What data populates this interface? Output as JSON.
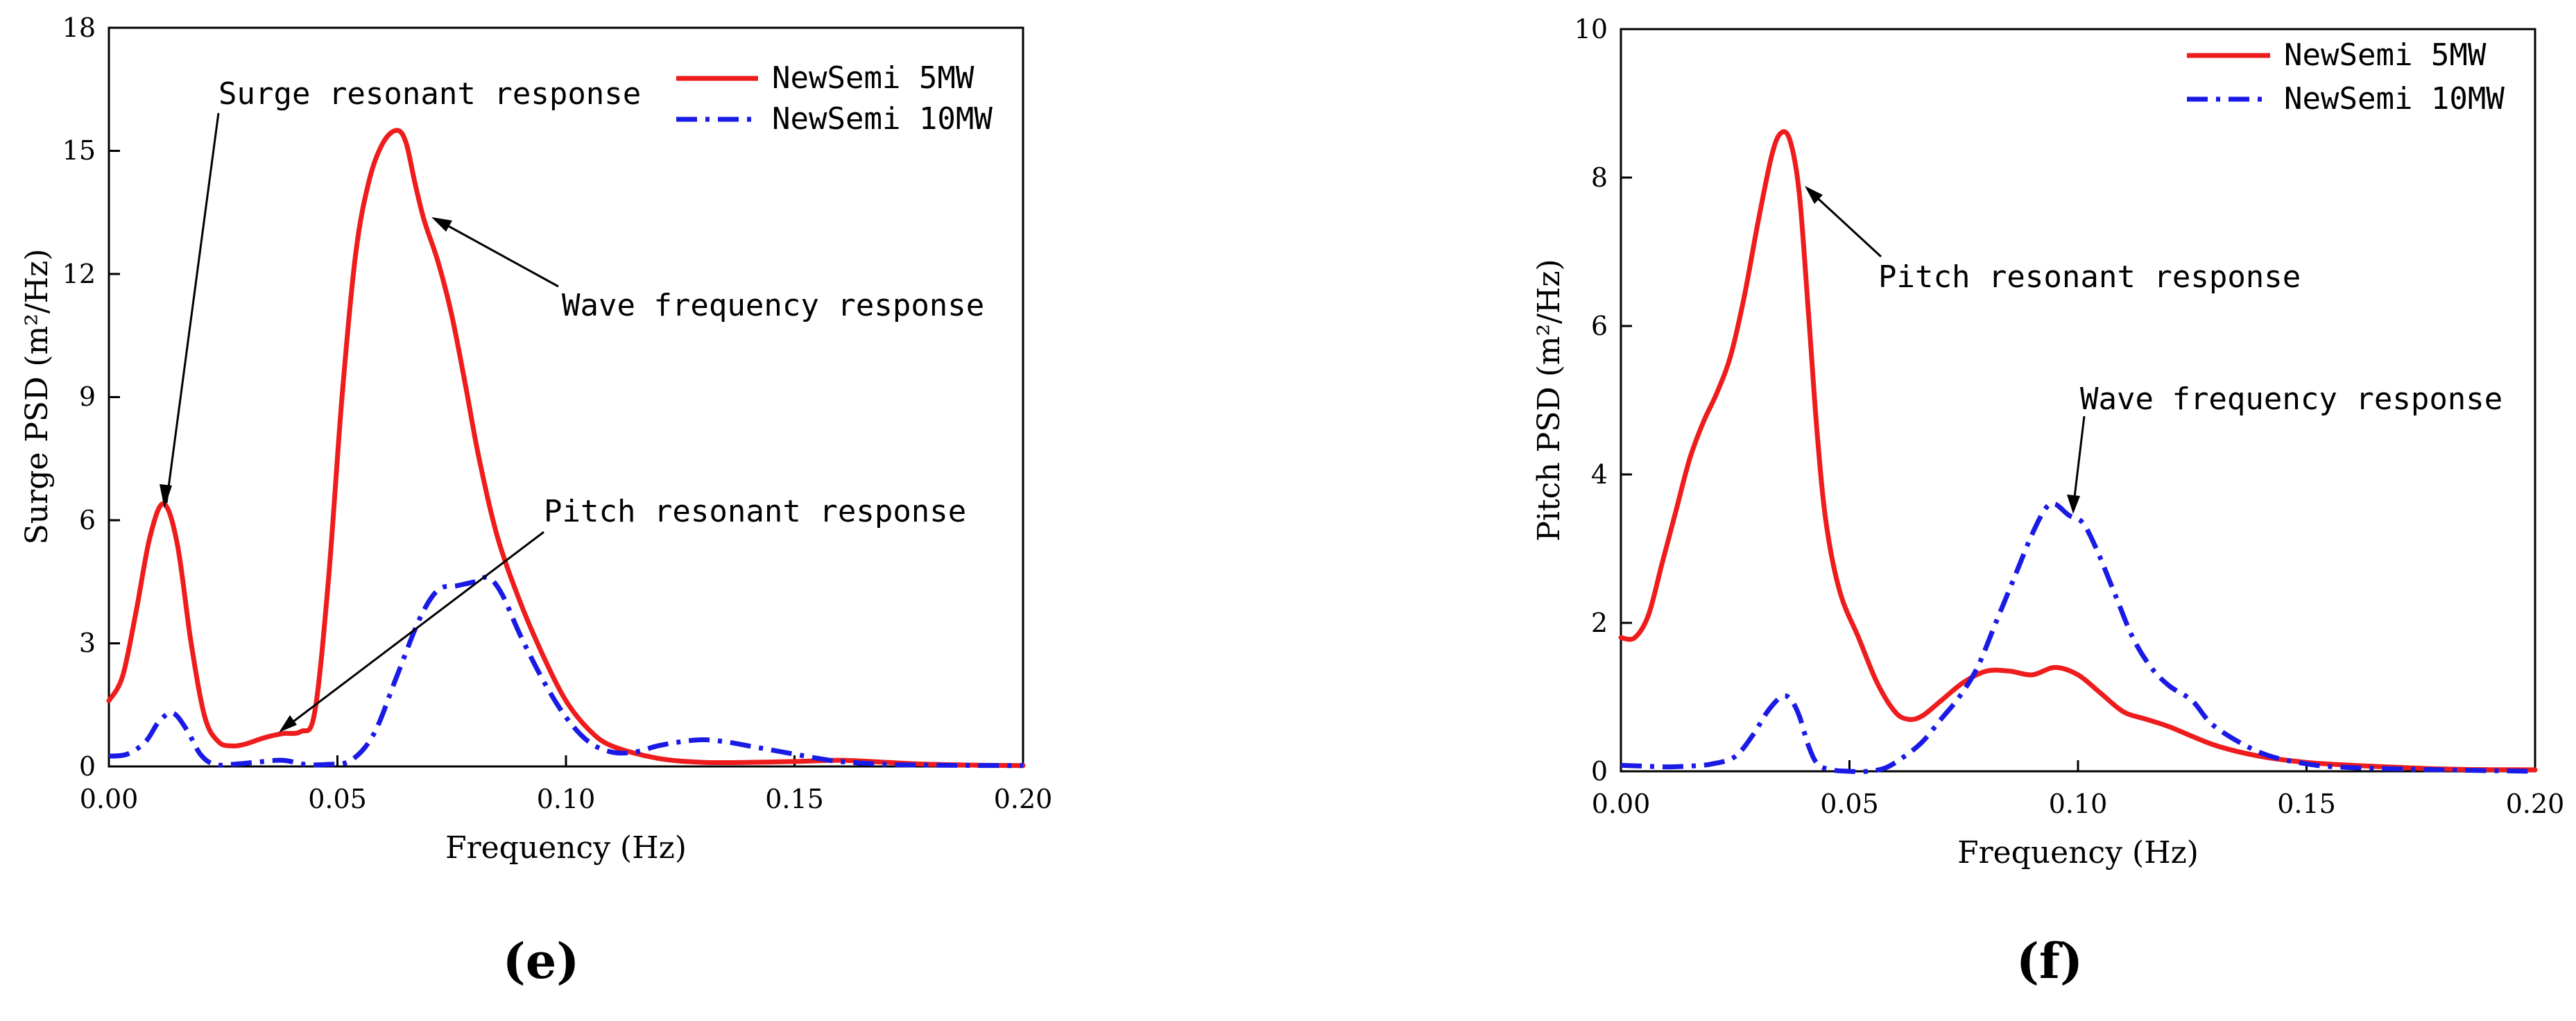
{
  "figure": {
    "colors": {
      "red": "#ee1c1c",
      "blue": "#1a1ae6",
      "axis": "#000000"
    }
  },
  "chart_data": [
    {
      "type": "line",
      "panel_label": "(e)",
      "xlabel": "Frequency (Hz)",
      "ylabel": "Surge PSD (m²/Hz)",
      "xlim": [
        0,
        0.2
      ],
      "ylim": [
        0,
        18
      ],
      "xticks": [
        0,
        0.05,
        0.1,
        0.15,
        0.2
      ],
      "xtick_labels": [
        "0.00",
        "0.05",
        "0.10",
        "0.15",
        "0.20"
      ],
      "yticks": [
        0,
        3,
        6,
        9,
        12,
        15,
        18
      ],
      "ytick_labels": [
        "0",
        "3",
        "6",
        "9",
        "12",
        "15",
        "18"
      ],
      "grid": false,
      "legend_position": "top-right",
      "series": [
        {
          "name": "NewSemi 5MW",
          "color": "#ee1c1c",
          "style": "solid",
          "x": [
            0,
            0.003,
            0.006,
            0.009,
            0.012,
            0.015,
            0.018,
            0.021,
            0.024,
            0.027,
            0.03,
            0.034,
            0.038,
            0.042,
            0.045,
            0.048,
            0.051,
            0.054,
            0.057,
            0.06,
            0.063,
            0.065,
            0.067,
            0.069,
            0.072,
            0.075,
            0.078,
            0.081,
            0.085,
            0.09,
            0.095,
            0.1,
            0.105,
            0.11,
            0.12,
            0.13,
            0.14,
            0.15,
            0.16,
            0.17,
            0.18,
            0.19,
            0.2
          ],
          "values": [
            1.6,
            2.2,
            3.8,
            5.6,
            6.4,
            5.4,
            3.0,
            1.2,
            0.6,
            0.5,
            0.55,
            0.7,
            0.8,
            0.85,
            1.3,
            4.5,
            9.0,
            12.5,
            14.3,
            15.2,
            15.5,
            15.2,
            14.2,
            13.3,
            12.3,
            11.0,
            9.3,
            7.5,
            5.6,
            4.0,
            2.7,
            1.6,
            0.9,
            0.5,
            0.2,
            0.1,
            0.1,
            0.12,
            0.15,
            0.1,
            0.05,
            0.03,
            0.02
          ]
        },
        {
          "name": "NewSemi 10MW",
          "color": "#1a1ae6",
          "style": "dash-dot",
          "x": [
            0,
            0.004,
            0.008,
            0.011,
            0.014,
            0.017,
            0.02,
            0.023,
            0.027,
            0.032,
            0.038,
            0.043,
            0.048,
            0.053,
            0.058,
            0.063,
            0.068,
            0.072,
            0.076,
            0.08,
            0.083,
            0.086,
            0.09,
            0.095,
            0.1,
            0.105,
            0.11,
            0.115,
            0.12,
            0.125,
            0.13,
            0.135,
            0.14,
            0.145,
            0.15,
            0.155,
            0.16,
            0.17,
            0.18,
            0.2
          ],
          "values": [
            0.25,
            0.3,
            0.6,
            1.1,
            1.3,
            0.9,
            0.3,
            0.05,
            0.05,
            0.1,
            0.15,
            0.05,
            0.05,
            0.15,
            0.8,
            2.2,
            3.6,
            4.3,
            4.4,
            4.5,
            4.6,
            4.2,
            3.2,
            2.1,
            1.2,
            0.6,
            0.35,
            0.35,
            0.5,
            0.6,
            0.65,
            0.6,
            0.5,
            0.4,
            0.3,
            0.2,
            0.12,
            0.05,
            0.03,
            0.02
          ]
        }
      ],
      "annotations": [
        {
          "text": "Surge resonant response",
          "x": 0.012,
          "y": 6.4
        },
        {
          "text": "Wave frequency response",
          "x": 0.071,
          "y": 13.4
        },
        {
          "text": "Pitch resonant response",
          "x": 0.037,
          "y": 0.85
        }
      ]
    },
    {
      "type": "line",
      "panel_label": "(f)",
      "xlabel": "Frequency (Hz)",
      "ylabel": "Pitch PSD (m²/Hz)",
      "xlim": [
        0,
        0.2
      ],
      "ylim": [
        0,
        10
      ],
      "xticks": [
        0,
        0.05,
        0.1,
        0.15,
        0.2
      ],
      "xtick_labels": [
        "0.00",
        "0.05",
        "0.10",
        "0.15",
        "0.20"
      ],
      "yticks": [
        0,
        2,
        4,
        6,
        8,
        10
      ],
      "ytick_labels": [
        "0",
        "2",
        "4",
        "6",
        "8",
        "10"
      ],
      "grid": false,
      "legend_position": "top-right",
      "series": [
        {
          "name": "NewSemi 5MW",
          "color": "#ee1c1c",
          "style": "solid",
          "x": [
            0,
            0.003,
            0.006,
            0.009,
            0.012,
            0.015,
            0.018,
            0.021,
            0.024,
            0.027,
            0.03,
            0.033,
            0.035,
            0.037,
            0.039,
            0.041,
            0.043,
            0.045,
            0.048,
            0.052,
            0.056,
            0.06,
            0.063,
            0.066,
            0.07,
            0.075,
            0.08,
            0.085,
            0.09,
            0.095,
            0.1,
            0.105,
            0.11,
            0.115,
            0.12,
            0.13,
            0.14,
            0.15,
            0.16,
            0.18,
            0.2
          ],
          "values": [
            1.8,
            1.8,
            2.1,
            2.8,
            3.5,
            4.2,
            4.7,
            5.1,
            5.6,
            6.4,
            7.4,
            8.3,
            8.6,
            8.5,
            7.8,
            6.2,
            4.5,
            3.3,
            2.4,
            1.8,
            1.2,
            0.8,
            0.7,
            0.75,
            0.95,
            1.2,
            1.35,
            1.35,
            1.3,
            1.4,
            1.3,
            1.05,
            0.8,
            0.7,
            0.6,
            0.35,
            0.2,
            0.12,
            0.08,
            0.03,
            0.02
          ]
        },
        {
          "name": "NewSemi 10MW",
          "color": "#1a1ae6",
          "style": "dash-dot",
          "x": [
            0,
            0.005,
            0.01,
            0.015,
            0.02,
            0.025,
            0.029,
            0.032,
            0.035,
            0.037,
            0.039,
            0.041,
            0.043,
            0.046,
            0.05,
            0.054,
            0.058,
            0.062,
            0.066,
            0.07,
            0.074,
            0.078,
            0.082,
            0.086,
            0.09,
            0.093,
            0.095,
            0.098,
            0.101,
            0.104,
            0.108,
            0.112,
            0.116,
            0.12,
            0.125,
            0.13,
            0.14,
            0.15,
            0.16,
            0.18,
            0.2
          ],
          "values": [
            0.08,
            0.07,
            0.06,
            0.07,
            0.1,
            0.2,
            0.5,
            0.8,
            1.0,
            0.98,
            0.75,
            0.35,
            0.1,
            0.02,
            0.0,
            0.0,
            0.05,
            0.2,
            0.4,
            0.7,
            1.0,
            1.4,
            2.0,
            2.6,
            3.2,
            3.55,
            3.6,
            3.45,
            3.35,
            3.0,
            2.4,
            1.8,
            1.4,
            1.15,
            0.95,
            0.6,
            0.25,
            0.1,
            0.05,
            0.02,
            0.0
          ]
        }
      ],
      "annotations": [
        {
          "text": "Pitch resonant response",
          "x": 0.038,
          "y": 8.0
        },
        {
          "text": "Wave frequency response",
          "x": 0.097,
          "y": 3.6
        }
      ]
    }
  ]
}
